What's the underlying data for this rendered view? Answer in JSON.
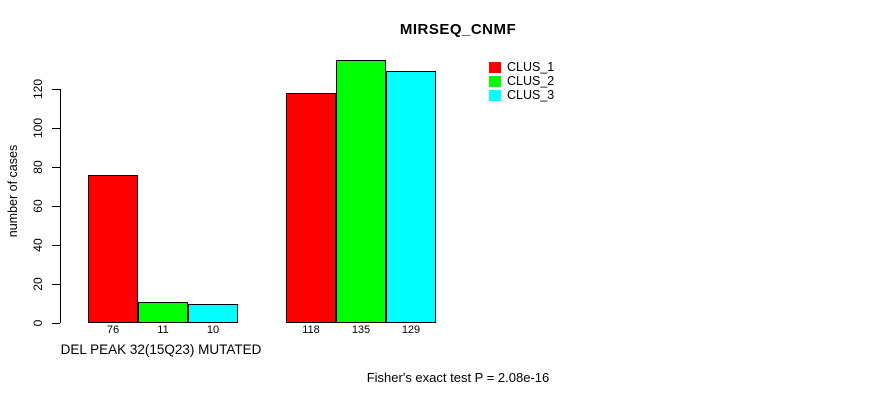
{
  "chart_data": {
    "type": "bar",
    "title": "MIRSEQ_CNMF",
    "ylabel": "number of cases",
    "xlabel": "",
    "ylim": [
      0,
      135
    ],
    "yticks": [
      0,
      20,
      40,
      60,
      80,
      100,
      120
    ],
    "grid": false,
    "legend_position": "top-right",
    "series": [
      {
        "name": "CLUS_1",
        "color": "#ff0000"
      },
      {
        "name": "CLUS_2",
        "color": "#00ff00"
      },
      {
        "name": "CLUS_3",
        "color": "#00ffff"
      }
    ],
    "groups": [
      {
        "label": "DEL PEAK 32(15Q23) MUTATED",
        "values": [
          76,
          11,
          10
        ]
      },
      {
        "label": "",
        "values": [
          118,
          135,
          129
        ]
      }
    ],
    "bar_border_color": "#000000",
    "axis_color": "#000000",
    "footnote": "Fisher's exact test P = 2.08e-16"
  }
}
